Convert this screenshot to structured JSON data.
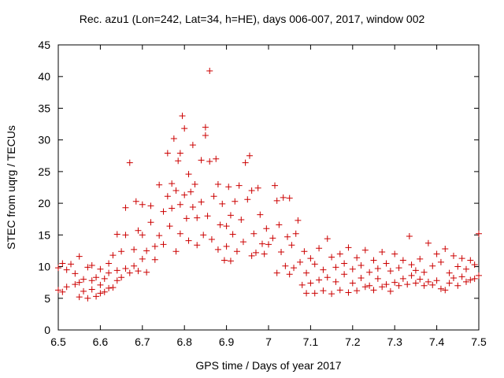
{
  "chart_data": {
    "type": "scatter",
    "title": "Rec. azu1 (Lon=242, Lat=34, h=HE), days 006-007, 2017, window 002",
    "xlabel": "GPS time / Days of year 2017",
    "ylabel": "STEC from uqrg / TECUs",
    "xlim": [
      6.5,
      7.5
    ],
    "ylim": [
      0,
      45
    ],
    "xticks": [
      6.5,
      6.6,
      6.7,
      6.8,
      6.9,
      7.0,
      7.1,
      7.2,
      7.3,
      7.4,
      7.5
    ],
    "xtick_labels": [
      "6.5",
      "6.6",
      "6.7",
      "6.8",
      "6.9",
      "7",
      "7.1",
      "7.2",
      "7.3",
      "7.4",
      "7.5"
    ],
    "yticks": [
      0,
      5,
      10,
      15,
      20,
      25,
      30,
      35,
      40,
      45
    ],
    "ytick_labels": [
      "0",
      "5",
      "10",
      "15",
      "20",
      "25",
      "30",
      "35",
      "40",
      "45"
    ],
    "marker": "+",
    "color": "#cc0000",
    "grid": false,
    "points": [
      [
        6.5,
        6.3
      ],
      [
        6.5,
        9.8
      ],
      [
        6.51,
        6.0
      ],
      [
        6.51,
        10.5
      ],
      [
        6.52,
        6.8
      ],
      [
        6.52,
        9.5
      ],
      [
        6.53,
        10.4
      ],
      [
        6.54,
        7.2
      ],
      [
        6.54,
        8.9
      ],
      [
        6.55,
        5.2
      ],
      [
        6.55,
        7.5
      ],
      [
        6.55,
        11.6
      ],
      [
        6.56,
        6.1
      ],
      [
        6.56,
        8.0
      ],
      [
        6.57,
        5.0
      ],
      [
        6.57,
        9.9
      ],
      [
        6.58,
        6.4
      ],
      [
        6.58,
        7.8
      ],
      [
        6.58,
        10.2
      ],
      [
        6.59,
        5.3
      ],
      [
        6.59,
        8.3
      ],
      [
        6.6,
        5.8
      ],
      [
        6.6,
        7.1
      ],
      [
        6.6,
        9.6
      ],
      [
        6.61,
        6.0
      ],
      [
        6.61,
        8.1
      ],
      [
        6.62,
        6.6
      ],
      [
        6.62,
        9.0
      ],
      [
        6.62,
        10.5
      ],
      [
        6.63,
        6.7
      ],
      [
        6.63,
        11.8
      ],
      [
        6.64,
        7.8
      ],
      [
        6.64,
        9.4
      ],
      [
        6.64,
        15.1
      ],
      [
        6.65,
        8.3
      ],
      [
        6.65,
        12.4
      ],
      [
        6.66,
        9.7
      ],
      [
        6.66,
        15.0
      ],
      [
        6.66,
        19.3
      ],
      [
        6.67,
        9.0
      ],
      [
        6.67,
        26.4
      ],
      [
        6.68,
        10.1
      ],
      [
        6.68,
        12.7
      ],
      [
        6.685,
        20.3
      ],
      [
        6.69,
        9.3
      ],
      [
        6.69,
        15.7
      ],
      [
        6.7,
        11.2
      ],
      [
        6.7,
        19.8
      ],
      [
        6.7,
        15.0
      ],
      [
        6.71,
        9.1
      ],
      [
        6.71,
        12.5
      ],
      [
        6.72,
        17.0
      ],
      [
        6.72,
        19.6
      ],
      [
        6.73,
        13.2
      ],
      [
        6.73,
        11.1
      ],
      [
        6.74,
        14.9
      ],
      [
        6.74,
        22.9
      ],
      [
        6.75,
        18.7
      ],
      [
        6.75,
        13.5
      ],
      [
        6.76,
        21.1
      ],
      [
        6.76,
        27.9
      ],
      [
        6.765,
        16.4
      ],
      [
        6.77,
        19.2
      ],
      [
        6.77,
        23.1
      ],
      [
        6.775,
        30.2
      ],
      [
        6.78,
        12.4
      ],
      [
        6.78,
        22.0
      ],
      [
        6.785,
        26.7
      ],
      [
        6.79,
        15.2
      ],
      [
        6.79,
        19.8
      ],
      [
        6.79,
        27.9
      ],
      [
        6.795,
        33.8
      ],
      [
        6.8,
        21.3
      ],
      [
        6.8,
        31.8
      ],
      [
        6.805,
        17.6
      ],
      [
        6.81,
        24.6
      ],
      [
        6.81,
        14.1
      ],
      [
        6.815,
        21.8
      ],
      [
        6.82,
        19.4
      ],
      [
        6.82,
        29.2
      ],
      [
        6.825,
        23.0
      ],
      [
        6.83,
        13.4
      ],
      [
        6.83,
        17.7
      ],
      [
        6.84,
        26.8
      ],
      [
        6.84,
        20.2
      ],
      [
        6.845,
        15.0
      ],
      [
        6.85,
        32.0
      ],
      [
        6.85,
        30.7
      ],
      [
        6.855,
        18.0
      ],
      [
        6.86,
        40.9
      ],
      [
        6.86,
        26.6
      ],
      [
        6.865,
        14.3
      ],
      [
        6.87,
        21.1
      ],
      [
        6.875,
        27.0
      ],
      [
        6.88,
        12.7
      ],
      [
        6.88,
        23.0
      ],
      [
        6.885,
        16.6
      ],
      [
        6.89,
        19.9
      ],
      [
        6.895,
        11.0
      ],
      [
        6.9,
        16.4
      ],
      [
        6.9,
        13.2
      ],
      [
        6.905,
        22.6
      ],
      [
        6.91,
        10.9
      ],
      [
        6.91,
        18.1
      ],
      [
        6.915,
        15.1
      ],
      [
        6.92,
        20.3
      ],
      [
        6.925,
        12.4
      ],
      [
        6.93,
        22.8
      ],
      [
        6.935,
        17.4
      ],
      [
        6.94,
        13.9
      ],
      [
        6.945,
        26.4
      ],
      [
        6.95,
        20.6
      ],
      [
        6.955,
        27.5
      ],
      [
        6.96,
        11.7
      ],
      [
        6.96,
        22.0
      ],
      [
        6.965,
        15.2
      ],
      [
        6.97,
        12.2
      ],
      [
        6.975,
        22.4
      ],
      [
        6.98,
        18.2
      ],
      [
        6.985,
        13.6
      ],
      [
        6.99,
        12.0
      ],
      [
        6.995,
        16.0
      ],
      [
        7.0,
        13.5
      ],
      [
        7.01,
        14.5
      ],
      [
        7.015,
        22.8
      ],
      [
        7.02,
        9.0
      ],
      [
        7.02,
        20.4
      ],
      [
        7.025,
        16.6
      ],
      [
        7.03,
        12.3
      ],
      [
        7.035,
        20.9
      ],
      [
        7.04,
        10.1
      ],
      [
        7.045,
        14.7
      ],
      [
        7.05,
        8.8
      ],
      [
        7.05,
        20.8
      ],
      [
        7.055,
        13.4
      ],
      [
        7.06,
        9.8
      ],
      [
        7.065,
        15.2
      ],
      [
        7.07,
        17.3
      ],
      [
        7.075,
        10.7
      ],
      [
        7.08,
        7.1
      ],
      [
        7.085,
        12.4
      ],
      [
        7.09,
        5.8
      ],
      [
        7.09,
        9.0
      ],
      [
        7.1,
        7.4
      ],
      [
        7.1,
        11.3
      ],
      [
        7.11,
        5.8
      ],
      [
        7.11,
        10.4
      ],
      [
        7.12,
        7.9
      ],
      [
        7.12,
        12.9
      ],
      [
        7.13,
        6.2
      ],
      [
        7.13,
        9.5
      ],
      [
        7.14,
        8.3
      ],
      [
        7.14,
        14.4
      ],
      [
        7.15,
        5.7
      ],
      [
        7.15,
        11.5
      ],
      [
        7.16,
        7.6
      ],
      [
        7.16,
        9.9
      ],
      [
        7.17,
        6.3
      ],
      [
        7.17,
        12.0
      ],
      [
        7.18,
        8.8
      ],
      [
        7.18,
        10.5
      ],
      [
        7.19,
        5.9
      ],
      [
        7.19,
        13.0
      ],
      [
        7.2,
        7.4
      ],
      [
        7.2,
        9.6
      ],
      [
        7.21,
        6.2
      ],
      [
        7.21,
        11.4
      ],
      [
        7.22,
        8.2
      ],
      [
        7.22,
        10.2
      ],
      [
        7.23,
        6.8
      ],
      [
        7.23,
        12.6
      ],
      [
        7.24,
        7.0
      ],
      [
        7.24,
        9.1
      ],
      [
        7.25,
        6.3
      ],
      [
        7.25,
        11.0
      ],
      [
        7.26,
        8.1
      ],
      [
        7.26,
        9.7
      ],
      [
        7.27,
        6.8
      ],
      [
        7.27,
        12.3
      ],
      [
        7.28,
        7.2
      ],
      [
        7.28,
        10.5
      ],
      [
        7.29,
        6.1
      ],
      [
        7.29,
        9.3
      ],
      [
        7.3,
        7.5
      ],
      [
        7.3,
        12.0
      ],
      [
        7.31,
        7.0
      ],
      [
        7.31,
        9.8
      ],
      [
        7.32,
        8.1
      ],
      [
        7.32,
        11.0
      ],
      [
        7.33,
        7.2
      ],
      [
        7.335,
        14.8
      ],
      [
        7.34,
        8.6
      ],
      [
        7.34,
        10.3
      ],
      [
        7.35,
        7.4
      ],
      [
        7.35,
        9.4
      ],
      [
        7.36,
        8.0
      ],
      [
        7.36,
        11.2
      ],
      [
        7.37,
        7.0
      ],
      [
        7.37,
        9.1
      ],
      [
        7.38,
        7.6
      ],
      [
        7.38,
        13.7
      ],
      [
        7.39,
        7.1
      ],
      [
        7.39,
        10.1
      ],
      [
        7.4,
        7.8
      ],
      [
        7.4,
        12.0
      ],
      [
        7.41,
        6.5
      ],
      [
        7.41,
        10.7
      ],
      [
        7.42,
        6.3
      ],
      [
        7.42,
        12.8
      ],
      [
        7.43,
        7.4
      ],
      [
        7.43,
        9.0
      ],
      [
        7.44,
        8.2
      ],
      [
        7.44,
        11.7
      ],
      [
        7.45,
        7.0
      ],
      [
        7.45,
        10.0
      ],
      [
        7.46,
        8.4
      ],
      [
        7.46,
        11.3
      ],
      [
        7.47,
        7.6
      ],
      [
        7.47,
        9.6
      ],
      [
        7.48,
        7.9
      ],
      [
        7.48,
        11.0
      ],
      [
        7.49,
        8.1
      ],
      [
        7.49,
        10.3
      ],
      [
        7.5,
        8.6
      ],
      [
        7.5,
        15.2
      ]
    ]
  }
}
